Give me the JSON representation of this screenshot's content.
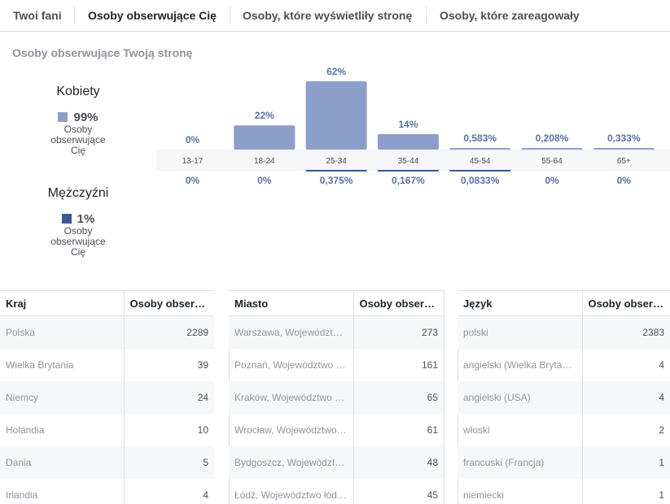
{
  "tabs": [
    {
      "label": "Twoi fani"
    },
    {
      "label": "Osoby obserwujące Cię"
    },
    {
      "label": "Osoby, które wyświetliły stronę"
    },
    {
      "label": "Osoby, które zareagowały"
    }
  ],
  "active_tab": 1,
  "section_title": "Osoby obserwujące Twoją stronę",
  "gender": {
    "women": {
      "title": "Kobiety",
      "percent": "99%",
      "sub_line1": "Osoby",
      "sub_line2": "obserwujące",
      "sub_line3": "Cię",
      "color": "#8c9fca"
    },
    "men": {
      "title": "Mężczyźni",
      "percent": "1%",
      "sub_line1": "Osoby",
      "sub_line2": "obserwujące",
      "sub_line3": "Cię",
      "color": "#3b5998"
    }
  },
  "chart_data": {
    "type": "bar",
    "categories": [
      "13-17",
      "18-24",
      "25-34",
      "35-44",
      "45-54",
      "55-64",
      "65+"
    ],
    "series": [
      {
        "name": "Kobiety",
        "values": [
          0,
          22,
          62,
          14,
          0.583,
          0.208,
          0.333
        ],
        "labels": [
          "0%",
          "22%",
          "62%",
          "14%",
          "0,583%",
          "0,208%",
          "0,333%"
        ],
        "color": "#8c9fca"
      },
      {
        "name": "Mężczyźni",
        "values": [
          0,
          0,
          0.375,
          0.167,
          0.0833,
          0,
          0
        ],
        "labels": [
          "0%",
          "0%",
          "0,375%",
          "0,167%",
          "0,0833%",
          "0%",
          "0%"
        ],
        "color": "#3b5998"
      }
    ],
    "ylim": [
      0,
      62
    ]
  },
  "tables": [
    {
      "header": "Kraj",
      "value_header": "Osoby obserwujące Cię",
      "rows": [
        {
          "name": "Polska",
          "value": "2289"
        },
        {
          "name": "Wielka Brytania",
          "value": "39"
        },
        {
          "name": "Niemcy",
          "value": "24"
        },
        {
          "name": "Holandia",
          "value": "10"
        },
        {
          "name": "Dania",
          "value": "5"
        },
        {
          "name": "Irlandia",
          "value": "4"
        }
      ]
    },
    {
      "header": "Miasto",
      "value_header": "Osoby obserwujące Cię",
      "rows": [
        {
          "name": "Warszawa, Województwo mazowieckie",
          "value": "273"
        },
        {
          "name": "Poznań, Województwo wielkopolskie",
          "value": "161"
        },
        {
          "name": "Kraków, Województwo małopolskie",
          "value": "65"
        },
        {
          "name": "Wrocław, Województwo dolnośląskie",
          "value": "61"
        },
        {
          "name": "Bydgoszcz, Województwo kujawsko-pomorskie",
          "value": "48"
        },
        {
          "name": "Łódź, Województwo łódzkie",
          "value": "45"
        }
      ]
    },
    {
      "header": "Język",
      "value_header": "Osoby obserwujące Cię",
      "rows": [
        {
          "name": "polski",
          "value": "2383"
        },
        {
          "name": "angielski (Wielka Brytania)",
          "value": "4"
        },
        {
          "name": "angielski (USA)",
          "value": "4"
        },
        {
          "name": "włoski",
          "value": "2"
        },
        {
          "name": "francuski (Francja)",
          "value": "1"
        },
        {
          "name": "niemiecki",
          "value": "1"
        }
      ]
    }
  ]
}
